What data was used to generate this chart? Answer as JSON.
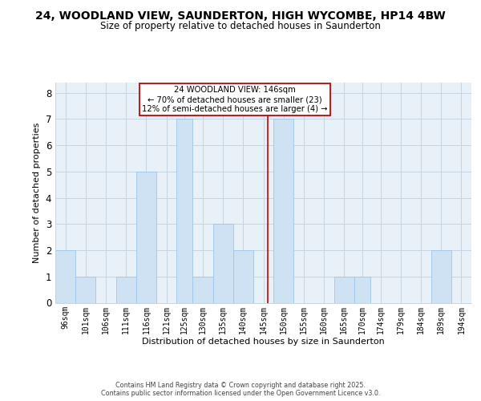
{
  "title": "24, WOODLAND VIEW, SAUNDERTON, HIGH WYCOMBE, HP14 4BW",
  "subtitle": "Size of property relative to detached houses in Saunderton",
  "xlabel": "Distribution of detached houses by size in Saunderton",
  "ylabel": "Number of detached properties",
  "bin_edges": [
    93.5,
    98.5,
    103.5,
    108.5,
    113.5,
    118.5,
    123.5,
    127.5,
    132.5,
    137.5,
    142.5,
    147.5,
    152.5,
    157.5,
    162.5,
    167.5,
    171.5,
    176.5,
    181.5,
    186.5,
    191.5,
    196.5
  ],
  "bin_labels": [
    "96sqm",
    "101sqm",
    "106sqm",
    "111sqm",
    "116sqm",
    "121sqm",
    "125sqm",
    "130sqm",
    "135sqm",
    "140sqm",
    "145sqm",
    "150sqm",
    "155sqm",
    "160sqm",
    "165sqm",
    "170sqm",
    "174sqm",
    "179sqm",
    "184sqm",
    "189sqm",
    "194sqm"
  ],
  "counts": [
    2,
    1,
    0,
    1,
    5,
    0,
    7,
    1,
    3,
    2,
    0,
    7,
    0,
    0,
    1,
    1,
    0,
    0,
    0,
    2,
    0
  ],
  "bar_color": "#cfe2f3",
  "bar_edge_color": "#9fc5e8",
  "plot_bg_color": "#e8f0f8",
  "property_size": 146,
  "vline_color": "#cc0000",
  "annotation_line1": "24 WOODLAND VIEW: 146sqm",
  "annotation_line2": "← 70% of detached houses are smaller (23)",
  "annotation_line3": "12% of semi-detached houses are larger (4) →",
  "annotation_box_color": "#ffffff",
  "annotation_box_edge": "#cc0000",
  "ylim": [
    0,
    8.4
  ],
  "yticks": [
    0,
    1,
    2,
    3,
    4,
    5,
    6,
    7,
    8
  ],
  "grid_color": "#c8d4e0",
  "title_fontsize": 10,
  "subtitle_fontsize": 8.5,
  "ylabel_fontsize": 8,
  "xlabel_fontsize": 8,
  "tick_fontsize": 7,
  "footer_line1": "Contains HM Land Registry data © Crown copyright and database right 2025.",
  "footer_line2": "Contains public sector information licensed under the Open Government Licence v3.0."
}
